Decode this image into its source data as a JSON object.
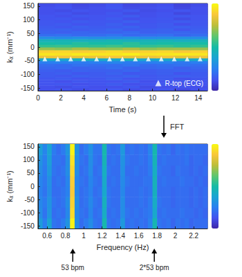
{
  "chart_data": [
    {
      "type": "heatmap",
      "x_label": "Time (s)",
      "y_label": "kₓ (mm⁻¹)",
      "xlim": [
        0,
        14.8
      ],
      "xticks": [
        0,
        2,
        4,
        6,
        8,
        10,
        12,
        14
      ],
      "ylim": [
        -160,
        160
      ],
      "yticks": [
        -150,
        -100,
        -50,
        0,
        50,
        100,
        150
      ],
      "grid": false,
      "legend": "lower right",
      "color_range": [
        0,
        1
      ],
      "x_bins": [
        0,
        1.48,
        2.96,
        4.44,
        5.92,
        7.4,
        8.88,
        10.36,
        11.84,
        13.32,
        14.8
      ],
      "y_bins": [
        -160,
        -150,
        -140,
        -130,
        -120,
        -110,
        -100,
        -90,
        -80,
        -70,
        -60,
        -50,
        -40,
        -30,
        -20,
        -10,
        0,
        10,
        20,
        30,
        40,
        50,
        60,
        70,
        80,
        90,
        100,
        110,
        120,
        130,
        140,
        150,
        160
      ],
      "values": [
        [
          0.12,
          0.13,
          0.11,
          0.12,
          0.14,
          0.11,
          0.12,
          0.13,
          0.1,
          0.12
        ],
        [
          0.12,
          0.11,
          0.13,
          0.12,
          0.12,
          0.14,
          0.11,
          0.12,
          0.13,
          0.12
        ],
        [
          0.13,
          0.14,
          0.12,
          0.13,
          0.15,
          0.12,
          0.13,
          0.14,
          0.11,
          0.13
        ],
        [
          0.13,
          0.12,
          0.14,
          0.13,
          0.13,
          0.15,
          0.12,
          0.13,
          0.14,
          0.13
        ],
        [
          0.14,
          0.15,
          0.13,
          0.14,
          0.16,
          0.13,
          0.14,
          0.15,
          0.12,
          0.14
        ],
        [
          0.15,
          0.14,
          0.16,
          0.15,
          0.15,
          0.17,
          0.14,
          0.15,
          0.16,
          0.15
        ],
        [
          0.15,
          0.16,
          0.14,
          0.15,
          0.17,
          0.14,
          0.15,
          0.16,
          0.13,
          0.15
        ],
        [
          0.16,
          0.15,
          0.17,
          0.16,
          0.16,
          0.18,
          0.15,
          0.16,
          0.17,
          0.16
        ],
        [
          0.18,
          0.19,
          0.17,
          0.18,
          0.2,
          0.17,
          0.18,
          0.19,
          0.16,
          0.18
        ],
        [
          0.2,
          0.19,
          0.21,
          0.2,
          0.2,
          0.22,
          0.19,
          0.2,
          0.21,
          0.2
        ],
        [
          0.25,
          0.26,
          0.24,
          0.25,
          0.27,
          0.24,
          0.25,
          0.26,
          0.23,
          0.25
        ],
        [
          0.4,
          0.38,
          0.42,
          0.4,
          0.39,
          0.43,
          0.38,
          0.4,
          0.41,
          0.4
        ],
        [
          0.85,
          0.86,
          0.84,
          0.85,
          0.87,
          0.84,
          0.85,
          0.86,
          0.83,
          0.85
        ],
        [
          0.95,
          0.94,
          0.96,
          0.95,
          0.95,
          0.97,
          0.94,
          0.95,
          0.96,
          0.95
        ],
        [
          0.9,
          0.91,
          0.89,
          0.9,
          0.92,
          0.89,
          0.9,
          0.91,
          0.88,
          0.9
        ],
        [
          0.7,
          0.68,
          0.72,
          0.7,
          0.69,
          0.73,
          0.68,
          0.7,
          0.71,
          0.7
        ],
        [
          0.55,
          0.56,
          0.54,
          0.55,
          0.57,
          0.54,
          0.55,
          0.56,
          0.53,
          0.55
        ],
        [
          0.5,
          0.48,
          0.52,
          0.5,
          0.49,
          0.53,
          0.48,
          0.5,
          0.51,
          0.5
        ],
        [
          0.45,
          0.46,
          0.44,
          0.45,
          0.47,
          0.44,
          0.45,
          0.46,
          0.43,
          0.45
        ],
        [
          0.3,
          0.29,
          0.31,
          0.3,
          0.3,
          0.32,
          0.29,
          0.3,
          0.31,
          0.3
        ],
        [
          0.2,
          0.21,
          0.19,
          0.2,
          0.22,
          0.19,
          0.2,
          0.21,
          0.18,
          0.2
        ],
        [
          0.17,
          0.16,
          0.18,
          0.17,
          0.17,
          0.19,
          0.16,
          0.17,
          0.18,
          0.17
        ],
        [
          0.16,
          0.17,
          0.15,
          0.16,
          0.18,
          0.15,
          0.16,
          0.17,
          0.14,
          0.16
        ],
        [
          0.15,
          0.14,
          0.16,
          0.15,
          0.15,
          0.17,
          0.14,
          0.15,
          0.16,
          0.15
        ],
        [
          0.14,
          0.15,
          0.13,
          0.14,
          0.16,
          0.13,
          0.14,
          0.15,
          0.12,
          0.14
        ],
        [
          0.14,
          0.13,
          0.15,
          0.14,
          0.14,
          0.16,
          0.13,
          0.14,
          0.15,
          0.14
        ],
        [
          0.13,
          0.14,
          0.12,
          0.13,
          0.15,
          0.12,
          0.13,
          0.14,
          0.11,
          0.13
        ],
        [
          0.13,
          0.12,
          0.14,
          0.13,
          0.13,
          0.15,
          0.12,
          0.13,
          0.14,
          0.13
        ],
        [
          0.12,
          0.13,
          0.11,
          0.12,
          0.14,
          0.11,
          0.12,
          0.13,
          0.1,
          0.12
        ],
        [
          0.12,
          0.11,
          0.13,
          0.12,
          0.12,
          0.14,
          0.11,
          0.12,
          0.13,
          0.12
        ],
        [
          0.12,
          0.13,
          0.11,
          0.12,
          0.14,
          0.11,
          0.12,
          0.13,
          0.1,
          0.12
        ],
        [
          0.11,
          0.12,
          0.1,
          0.11,
          0.13,
          0.1,
          0.11,
          0.12,
          0.09,
          0.11
        ]
      ],
      "series": [
        {
          "name": "R-top (ECG)",
          "type": "scatter",
          "marker": "triangle",
          "color": "#ffffff",
          "x": [
            0.6,
            1.73,
            2.86,
            3.99,
            5.12,
            6.25,
            7.38,
            8.51,
            9.64,
            10.77,
            11.9,
            13.03,
            14.16
          ],
          "values": [
            -43,
            -43,
            -43,
            -43,
            -43,
            -43,
            -43,
            -43,
            -43,
            -43,
            -43,
            -43,
            -43
          ]
        }
      ],
      "annotations": [
        {
          "text": "FFT"
        }
      ]
    },
    {
      "type": "heatmap",
      "x_label": "Frequency (Hz)",
      "y_label": "kₓ (mm⁻¹)",
      "xlim": [
        0.5,
        2.35
      ],
      "xticks": [
        0.6,
        0.8,
        1,
        1.2,
        1.4,
        1.6,
        1.8,
        2,
        2.2
      ],
      "ylim": [
        -160,
        160
      ],
      "yticks": [
        -150,
        -100,
        -50,
        0,
        50,
        100,
        150
      ],
      "grid": false,
      "color_range": [
        0,
        1
      ],
      "x_bins": [
        0.5,
        0.55,
        0.6,
        0.65,
        0.7,
        0.75,
        0.8,
        0.85,
        0.9,
        0.95,
        1,
        1.05,
        1.1,
        1.15,
        1.2,
        1.25,
        1.3,
        1.35,
        1.4,
        1.45,
        1.5,
        1.55,
        1.6,
        1.65,
        1.7,
        1.75,
        1.8,
        1.85,
        1.9,
        1.95,
        2,
        2.05,
        2.1,
        2.15,
        2.2,
        2.25,
        2.3,
        2.35
      ],
      "y_bins": [
        -160,
        -120,
        -80,
        -40,
        0,
        40,
        80,
        120,
        160
      ],
      "values": [
        [
          0.35,
          0.25,
          0.38,
          0.22,
          0.2,
          0.24,
          0.32,
          0.98,
          0.3,
          0.2,
          0.24,
          0.3,
          0.22,
          0.2,
          0.48,
          0.22,
          0.2,
          0.22,
          0.34,
          0.2,
          0.22,
          0.2,
          0.22,
          0.2,
          0.26,
          0.47,
          0.22,
          0.2,
          0.22,
          0.18,
          0.22,
          0.2,
          0.22,
          0.18,
          0.2,
          0.2,
          0.2
        ],
        [
          0.3,
          0.22,
          0.33,
          0.2,
          0.22,
          0.2,
          0.28,
          0.92,
          0.28,
          0.22,
          0.2,
          0.27,
          0.2,
          0.22,
          0.42,
          0.2,
          0.22,
          0.2,
          0.3,
          0.22,
          0.2,
          0.22,
          0.2,
          0.22,
          0.24,
          0.4,
          0.2,
          0.22,
          0.2,
          0.2,
          0.2,
          0.22,
          0.2,
          0.2,
          0.18,
          0.2,
          0.18
        ],
        [
          0.28,
          0.24,
          0.32,
          0.22,
          0.2,
          0.22,
          0.3,
          0.9,
          0.3,
          0.2,
          0.22,
          0.28,
          0.22,
          0.2,
          0.44,
          0.22,
          0.2,
          0.2,
          0.3,
          0.2,
          0.2,
          0.2,
          0.22,
          0.2,
          0.24,
          0.42,
          0.22,
          0.2,
          0.2,
          0.18,
          0.2,
          0.2,
          0.2,
          0.18,
          0.2,
          0.18,
          0.2
        ],
        [
          0.26,
          0.22,
          0.3,
          0.2,
          0.2,
          0.22,
          0.26,
          0.88,
          0.28,
          0.2,
          0.22,
          0.26,
          0.2,
          0.22,
          0.4,
          0.22,
          0.2,
          0.2,
          0.28,
          0.2,
          0.2,
          0.2,
          0.22,
          0.2,
          0.22,
          0.44,
          0.2,
          0.2,
          0.2,
          0.18,
          0.2,
          0.2,
          0.2,
          0.18,
          0.2,
          0.18,
          0.2
        ],
        [
          0.27,
          0.23,
          0.31,
          0.2,
          0.22,
          0.2,
          0.27,
          0.89,
          0.27,
          0.22,
          0.2,
          0.27,
          0.22,
          0.2,
          0.41,
          0.2,
          0.22,
          0.2,
          0.29,
          0.22,
          0.2,
          0.2,
          0.2,
          0.22,
          0.22,
          0.45,
          0.2,
          0.22,
          0.2,
          0.2,
          0.2,
          0.22,
          0.2,
          0.2,
          0.18,
          0.2,
          0.18
        ],
        [
          0.3,
          0.24,
          0.34,
          0.22,
          0.2,
          0.22,
          0.3,
          0.91,
          0.3,
          0.2,
          0.22,
          0.29,
          0.2,
          0.22,
          0.43,
          0.22,
          0.2,
          0.2,
          0.31,
          0.2,
          0.2,
          0.22,
          0.2,
          0.2,
          0.24,
          0.43,
          0.22,
          0.2,
          0.2,
          0.18,
          0.22,
          0.2,
          0.2,
          0.18,
          0.2,
          0.18,
          0.2
        ],
        [
          0.32,
          0.25,
          0.36,
          0.22,
          0.22,
          0.2,
          0.3,
          0.94,
          0.3,
          0.22,
          0.2,
          0.3,
          0.22,
          0.2,
          0.46,
          0.2,
          0.22,
          0.2,
          0.32,
          0.22,
          0.2,
          0.2,
          0.22,
          0.2,
          0.25,
          0.46,
          0.2,
          0.22,
          0.2,
          0.2,
          0.2,
          0.2,
          0.22,
          0.18,
          0.2,
          0.2,
          0.18
        ],
        [
          0.36,
          0.27,
          0.38,
          0.24,
          0.2,
          0.24,
          0.33,
          0.98,
          0.32,
          0.2,
          0.24,
          0.31,
          0.22,
          0.22,
          0.48,
          0.22,
          0.2,
          0.22,
          0.34,
          0.2,
          0.22,
          0.2,
          0.22,
          0.2,
          0.27,
          0.48,
          0.22,
          0.2,
          0.22,
          0.18,
          0.22,
          0.2,
          0.22,
          0.2,
          0.2,
          0.2,
          0.2
        ]
      ],
      "annotations": [
        {
          "x": 0.88,
          "text": "53 bpm"
        },
        {
          "x": 1.77,
          "text": "2*53 bpm"
        }
      ]
    }
  ]
}
